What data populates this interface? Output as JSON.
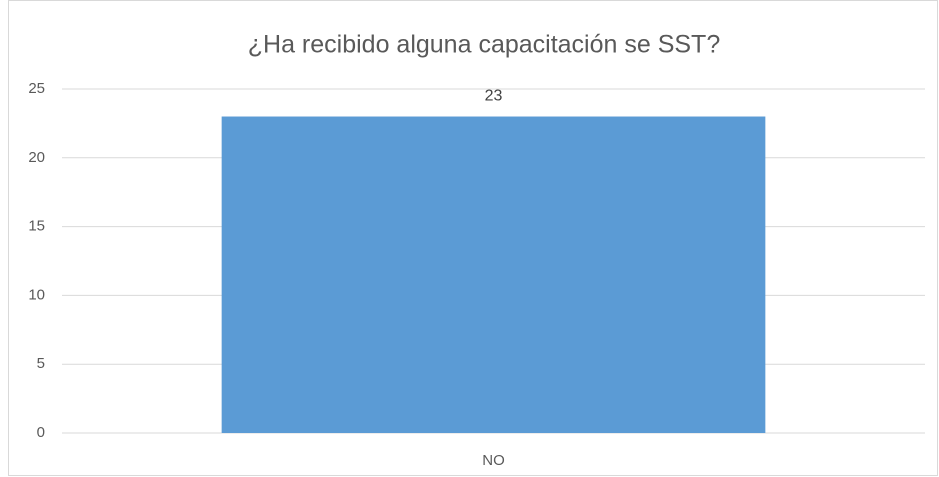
{
  "chart_data": {
    "type": "bar",
    "title": "¿Ha recibido alguna capacitación se SST?",
    "categories": [
      "NO"
    ],
    "values": [
      23
    ],
    "color": "#5b9bd5",
    "ylim": [
      0,
      25
    ],
    "yticks": [
      0,
      5,
      10,
      15,
      20,
      25
    ],
    "grid": true
  }
}
